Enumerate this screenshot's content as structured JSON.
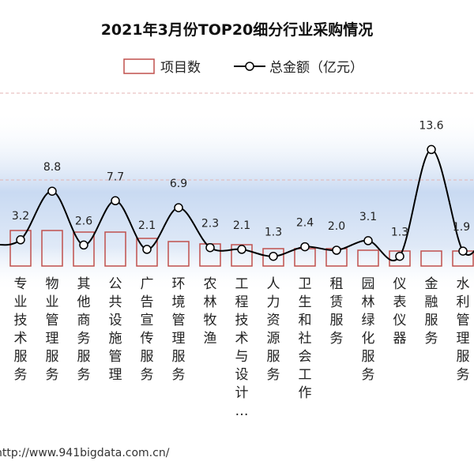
{
  "chart_data": {
    "type": "bar",
    "title": "2021年3月份TOP20细分行业采购情况",
    "categories": [
      "专业技术服务",
      "物业管理服务",
      "其他商务服务",
      "公共设施管理",
      "广告宣传服务",
      "环境管理服务",
      "农林牧渔",
      "工程技术与设计…",
      "人力资源服务",
      "卫生和社会工作",
      "租赁服务",
      "园林绿化服务",
      "仪表仪器",
      "金融服务",
      "水利管理服务"
    ],
    "series": [
      {
        "name": "项目数",
        "type": "bar",
        "values": [
          null,
          null,
          null,
          null,
          null,
          null,
          null,
          null,
          null,
          null,
          null,
          null,
          null,
          null,
          null
        ]
      },
      {
        "name": "总金额（亿元）",
        "type": "line",
        "values": [
          3.2,
          8.8,
          2.6,
          7.7,
          2.1,
          6.9,
          2.3,
          2.1,
          1.3,
          2.4,
          2.0,
          3.1,
          1.3,
          13.6,
          1.9
        ]
      }
    ],
    "legend": "top-center",
    "grid": true,
    "colors": {
      "bar_stroke": "#c0504d",
      "line": "#000000",
      "band": "#c9daf2"
    }
  },
  "watermark": "http://www.941bigdata.com.cn/"
}
